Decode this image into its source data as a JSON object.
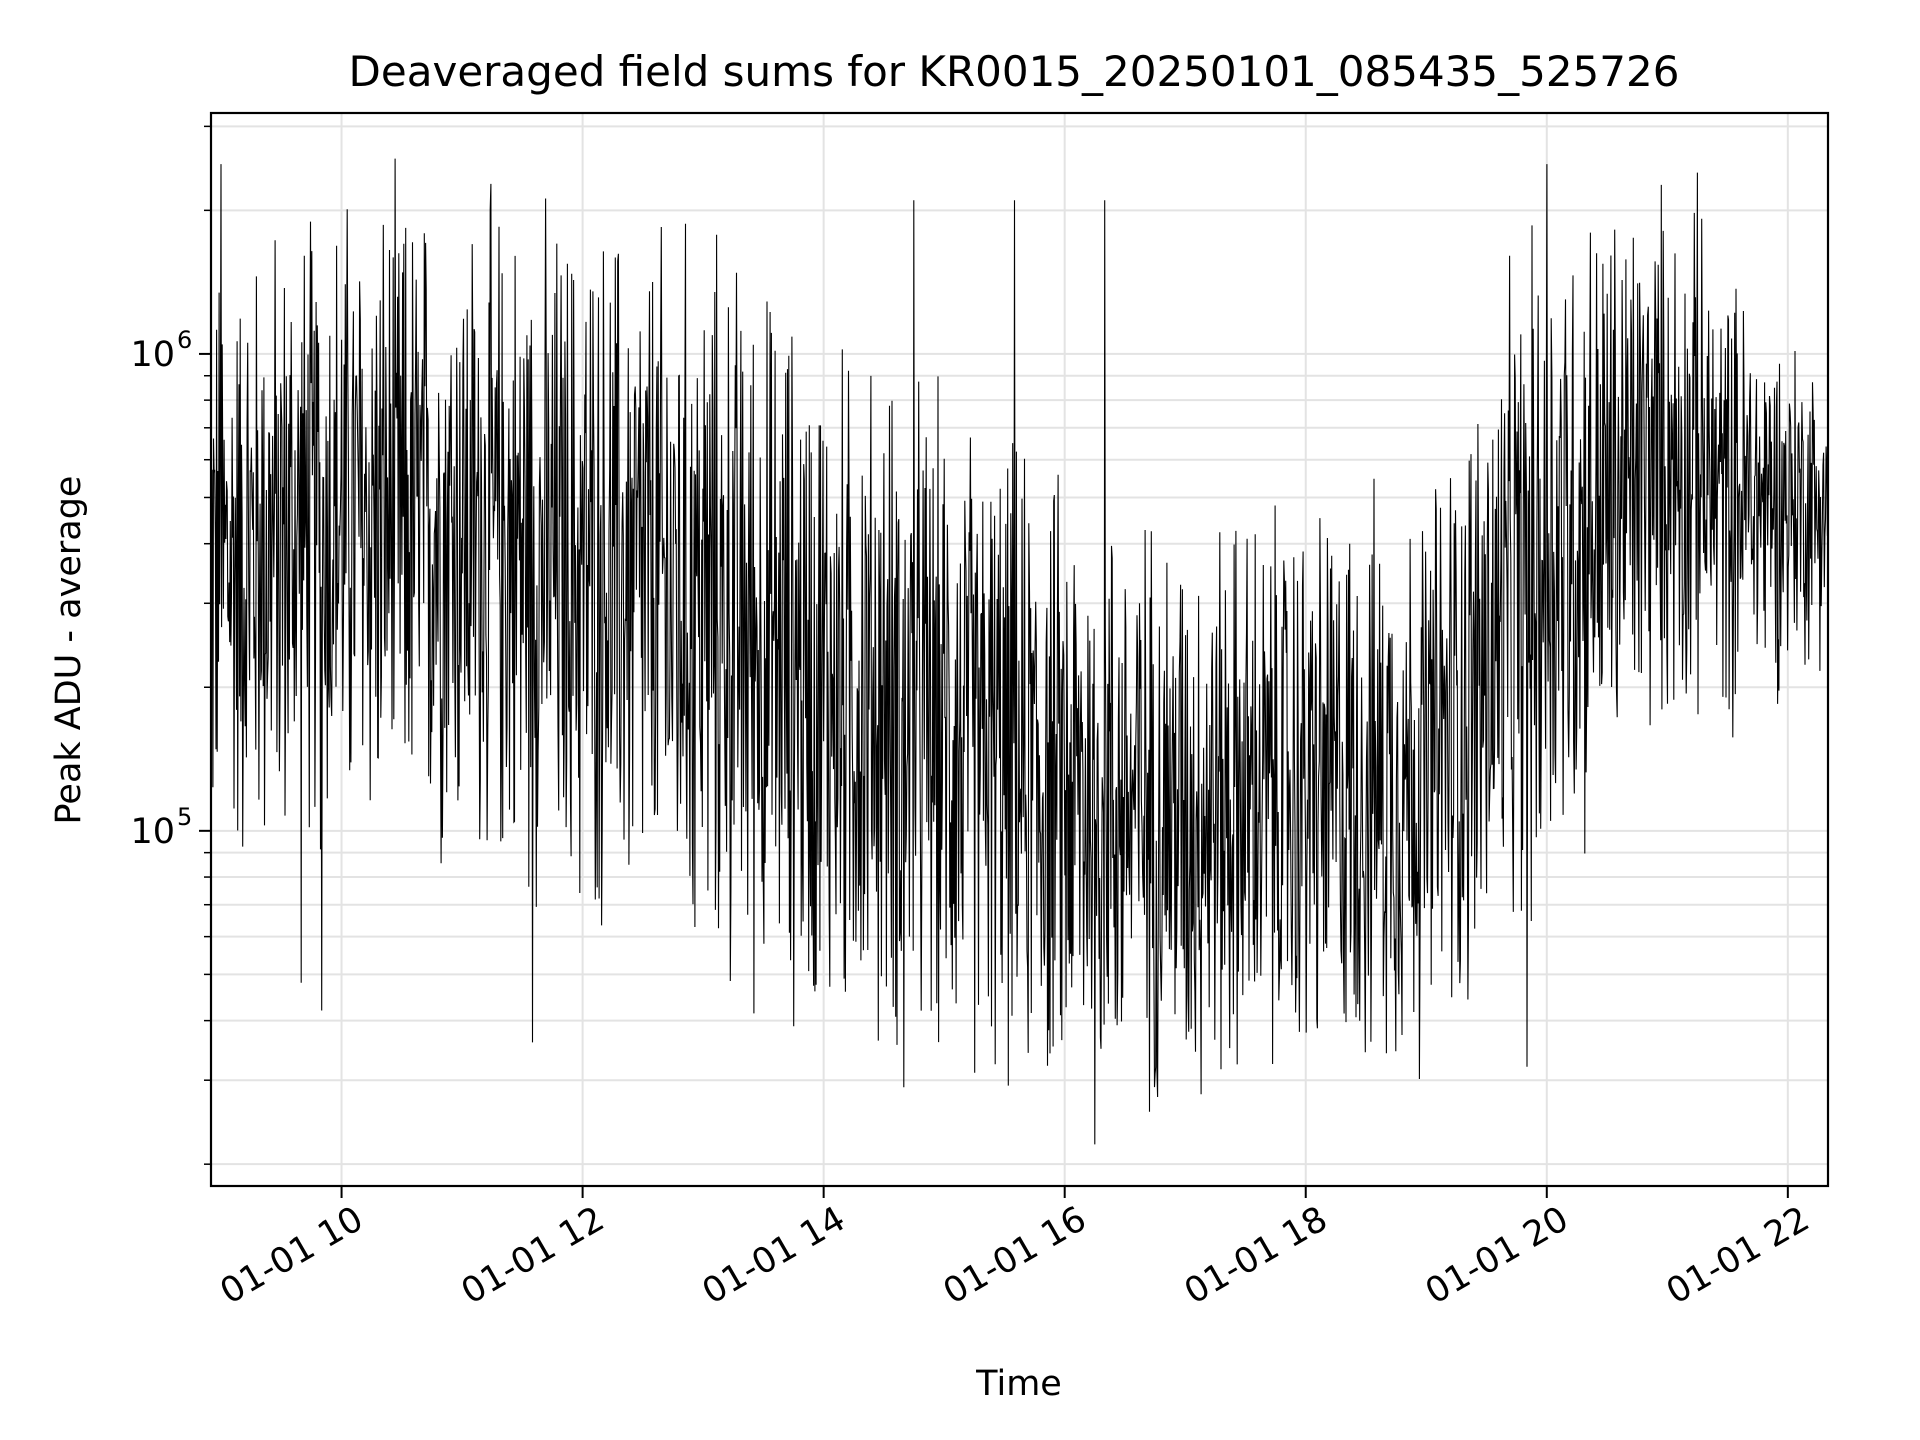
{
  "chart_data": {
    "type": "line",
    "title": "Deaveraged field sums for KR0015_20250101_085435_525726",
    "xlabel": "Time",
    "ylabel": "Peak ADU - average",
    "yscale": "log",
    "grid": true,
    "x_axis": {
      "type": "datetime",
      "range": [
        "2025-01-01T08:55",
        "2025-01-01T22:20"
      ],
      "ticks": [
        {
          "value": "2025-01-01T10:00",
          "label": "01-01 10"
        },
        {
          "value": "2025-01-01T12:00",
          "label": "01-01 12"
        },
        {
          "value": "2025-01-01T14:00",
          "label": "01-01 14"
        },
        {
          "value": "2025-01-01T16:00",
          "label": "01-01 16"
        },
        {
          "value": "2025-01-01T18:00",
          "label": "01-01 18"
        },
        {
          "value": "2025-01-01T20:00",
          "label": "01-01 20"
        },
        {
          "value": "2025-01-01T22:00",
          "label": "01-01 22"
        }
      ]
    },
    "y_axis": {
      "range": [
        18000,
        3200000
      ],
      "ticks": [
        {
          "value": 100000,
          "base": "10",
          "exp": "5"
        },
        {
          "value": 1000000,
          "base": "10",
          "exp": "6"
        }
      ]
    },
    "series": [
      {
        "color": "#000000",
        "envelope": [
          {
            "t": "2025-01-01T08:55",
            "median": 350000,
            "spread": 0.75
          },
          {
            "t": "2025-01-01T10:00",
            "median": 450000,
            "spread": 0.8
          },
          {
            "t": "2025-01-01T11:00",
            "median": 430000,
            "spread": 0.8
          },
          {
            "t": "2025-01-01T12:00",
            "median": 350000,
            "spread": 0.85
          },
          {
            "t": "2025-01-01T13:00",
            "median": 300000,
            "spread": 0.9
          },
          {
            "t": "2025-01-01T14:00",
            "median": 200000,
            "spread": 0.85
          },
          {
            "t": "2025-01-01T15:00",
            "median": 160000,
            "spread": 0.8
          },
          {
            "t": "2025-01-01T16:00",
            "median": 120000,
            "spread": 0.75
          },
          {
            "t": "2025-01-01T17:00",
            "median": 110000,
            "spread": 0.7
          },
          {
            "t": "2025-01-01T18:00",
            "median": 120000,
            "spread": 0.7
          },
          {
            "t": "2025-01-01T19:00",
            "median": 130000,
            "spread": 0.7
          },
          {
            "t": "2025-01-01T20:00",
            "median": 380000,
            "spread": 0.85
          },
          {
            "t": "2025-01-01T21:00",
            "median": 620000,
            "spread": 0.65
          },
          {
            "t": "2025-01-01T21:30",
            "median": 500000,
            "spread": 0.55
          },
          {
            "t": "2025-01-01T22:20",
            "median": 480000,
            "spread": 0.35
          }
        ],
        "extremes": [
          {
            "t": "2025-01-01T09:00",
            "value": 2500000
          },
          {
            "t": "2025-01-01T09:40",
            "value": 48000
          },
          {
            "t": "2025-01-01T09:50",
            "value": 42000
          },
          {
            "t": "2025-01-01T11:35",
            "value": 36000
          },
          {
            "t": "2025-01-01T14:40",
            "value": 29000
          },
          {
            "t": "2025-01-01T14:45",
            "value": 2100000
          },
          {
            "t": "2025-01-01T15:35",
            "value": 2100000
          },
          {
            "t": "2025-01-01T16:15",
            "value": 22000
          },
          {
            "t": "2025-01-01T16:20",
            "value": 2100000
          },
          {
            "t": "2025-01-01T19:50",
            "value": 32000
          },
          {
            "t": "2025-01-01T20:00",
            "value": 2500000
          },
          {
            "t": "2025-01-01T21:15",
            "value": 2400000
          }
        ]
      }
    ]
  }
}
